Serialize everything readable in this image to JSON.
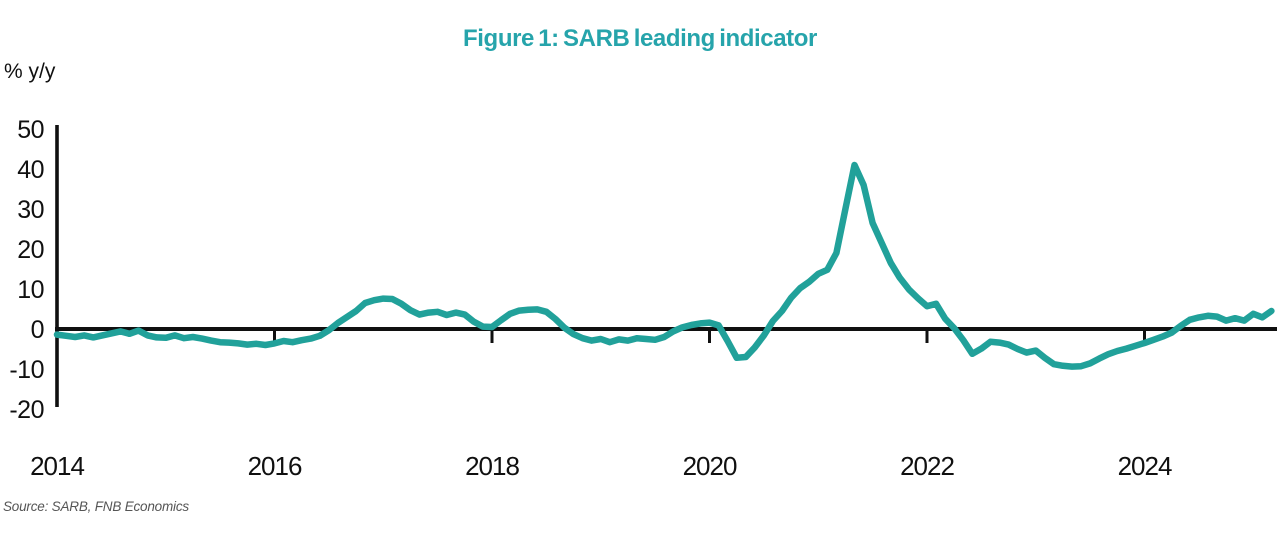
{
  "page": {
    "title": "Figure 1: SARB leading indicator",
    "y_axis_unit_label": "% y/y",
    "source": "Source: SARB, FNB Economics"
  },
  "colors": {
    "title": "#26a4ab",
    "line": "#21a19a",
    "axis": "#101010",
    "source_text": "#555555"
  },
  "chart_data": {
    "type": "line",
    "title": "Figure 1: SARB leading indicator",
    "ylabel": "% y/y",
    "source": "Source: SARB, FNB Economics",
    "legend": "none",
    "grid": false,
    "ylim": [
      -20,
      50
    ],
    "yticks": [
      50,
      40,
      30,
      20,
      10,
      0,
      -10,
      -20
    ],
    "xticks": [
      2014,
      2016,
      2018,
      2020,
      2022,
      2024
    ],
    "xlim": [
      2014,
      2025.25
    ],
    "series": [
      {
        "name": "SARB leading indicator (% y/y)",
        "frequency": "monthly",
        "x_start": "2014-01",
        "x_end": "2025-03",
        "values": [
          -1.4,
          -1.7,
          -2.0,
          -1.6,
          -2.1,
          -1.6,
          -1.1,
          -0.6,
          -1.2,
          -0.4,
          -1.6,
          -2.1,
          -2.2,
          -1.6,
          -2.3,
          -2.0,
          -2.4,
          -2.9,
          -3.3,
          -3.4,
          -3.6,
          -3.9,
          -3.7,
          -4.0,
          -3.6,
          -3.0,
          -3.3,
          -2.8,
          -2.4,
          -1.7,
          -0.3,
          1.5,
          3.0,
          4.5,
          6.5,
          7.2,
          7.6,
          7.5,
          6.3,
          4.7,
          3.6,
          4.1,
          4.3,
          3.5,
          4.1,
          3.6,
          1.8,
          0.6,
          0.5,
          2.2,
          3.8,
          4.6,
          4.8,
          4.9,
          4.3,
          2.5,
          0.3,
          -1.3,
          -2.3,
          -2.9,
          -2.5,
          -3.3,
          -2.6,
          -2.9,
          -2.3,
          -2.5,
          -2.7,
          -2.0,
          -0.6,
          0.4,
          1.0,
          1.4,
          1.6,
          0.9,
          -3.0,
          -7.2,
          -7.0,
          -4.6,
          -1.6,
          2.0,
          4.5,
          7.8,
          10.2,
          11.8,
          13.8,
          14.8,
          19.0,
          30.0,
          41.0,
          36.0,
          26.5,
          21.5,
          16.5,
          12.8,
          9.9,
          7.7,
          5.7,
          6.3,
          2.6,
          0.2,
          -2.8,
          -6.2,
          -4.9,
          -3.2,
          -3.4,
          -3.9,
          -5.0,
          -5.9,
          -5.4,
          -7.2,
          -8.8,
          -9.2,
          -9.4,
          -9.3,
          -8.6,
          -7.4,
          -6.3,
          -5.5,
          -4.9,
          -4.2,
          -3.5,
          -2.7,
          -1.9,
          -0.9,
          0.8,
          2.3,
          2.9,
          3.3,
          3.1,
          2.1,
          2.7,
          2.1,
          3.8,
          2.9,
          4.5
        ]
      }
    ]
  }
}
